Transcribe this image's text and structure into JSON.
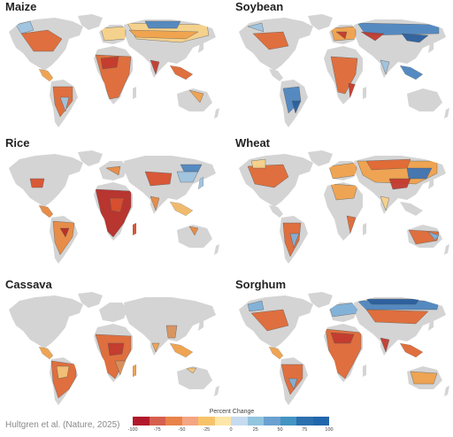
{
  "panels": [
    {
      "id": "maize",
      "title": "Maize",
      "scheme": [
        "#c23a2f",
        "#e06a36",
        "#f0a24c",
        "#f6d188",
        "#9fc3e0",
        "#4f86c0"
      ]
    },
    {
      "id": "soy",
      "title": "Soybean",
      "scheme": [
        "#c23a2f",
        "#e06a36",
        "#f0a24c",
        "#9fc3e0",
        "#4f86c0",
        "#2c5f9e"
      ]
    },
    {
      "id": "rice",
      "title": "Rice",
      "scheme": [
        "#b72d28",
        "#d9522f",
        "#e88a42",
        "#f2b969",
        "#9fc3e0",
        "#4f86c0"
      ]
    },
    {
      "id": "wheat",
      "title": "Wheat",
      "scheme": [
        "#c23a2f",
        "#e06a36",
        "#f0a24c",
        "#f6d188",
        "#7fb0d8",
        "#3f74b4"
      ]
    },
    {
      "id": "cassava",
      "title": "Cassava",
      "scheme": [
        "#c23a2f",
        "#e06a36",
        "#f0a24c",
        "#f2c27a",
        "#d8925c",
        "#9fc3e0"
      ]
    },
    {
      "id": "sorghum",
      "title": "Sorghum",
      "scheme": [
        "#c23a2f",
        "#e06a36",
        "#f0a24c",
        "#7fb0d8",
        "#4f86c0",
        "#2c5f9e"
      ]
    }
  ],
  "source": "Hultgren et al. (Nature, 2025)",
  "legend": {
    "title": "Percent Change",
    "ticks": [
      "-100",
      "-75",
      "-50",
      "-25",
      "0",
      "25",
      "50",
      "75",
      "100"
    ],
    "colors": [
      "#b2182b",
      "#d6604d",
      "#e8834a",
      "#f4a582",
      "#f7c36a",
      "#fde6a8",
      "#c6dbef",
      "#92c5de",
      "#6aa1d0",
      "#4393c3",
      "#2c6fae",
      "#2166ac"
    ]
  }
}
